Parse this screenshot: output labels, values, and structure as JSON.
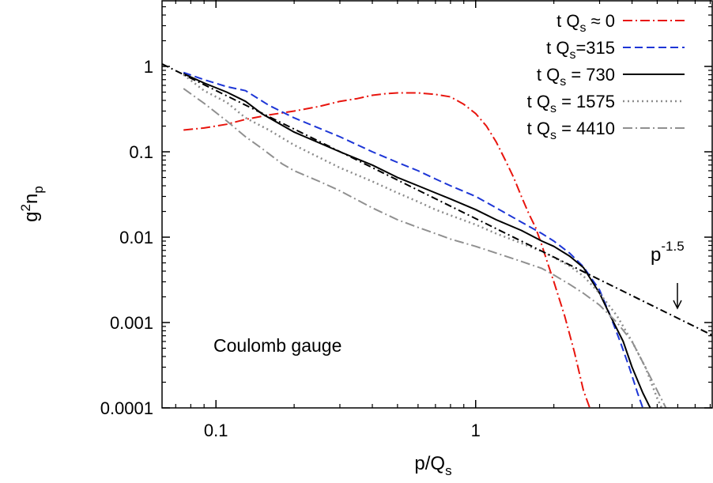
{
  "chart_data": {
    "type": "line",
    "xlabel": "p/Q",
    "xlabel_sub": "s",
    "ylabel": "g",
    "ylabel_sup": "2",
    "ylabel_tail": "n",
    "ylabel_sub": "p",
    "x_scale": "log",
    "y_scale": "log",
    "xlim": [
      0.062,
      8.2
    ],
    "ylim": [
      0.0001,
      6.0
    ],
    "xticks": [
      {
        "value": 0.1,
        "label": "0.1"
      },
      {
        "value": 1,
        "label": "1"
      }
    ],
    "yticks": [
      {
        "value": 0.0001,
        "label": "0.0001"
      },
      {
        "value": 0.001,
        "label": "0.001"
      },
      {
        "value": 0.01,
        "label": "0.01"
      },
      {
        "value": 0.1,
        "label": "0.1"
      },
      {
        "value": 1,
        "label": "1"
      }
    ],
    "grid": false,
    "legend_position": "top-right",
    "annotations": {
      "gauge": "Coulomb gauge",
      "powerlaw_base": "p",
      "powerlaw_exp": "-1.5"
    },
    "series": [
      {
        "legend_pre": "t Q",
        "legend_sub": "s",
        "legend_post": " ≈ 0",
        "color": "#e8150e",
        "dash": "12,4,2,4",
        "width": 2,
        "points": [
          [
            0.075,
            0.18
          ],
          [
            0.09,
            0.19
          ],
          [
            0.11,
            0.21
          ],
          [
            0.13,
            0.24
          ],
          [
            0.16,
            0.27
          ],
          [
            0.2,
            0.3
          ],
          [
            0.25,
            0.34
          ],
          [
            0.3,
            0.39
          ],
          [
            0.35,
            0.42
          ],
          [
            0.4,
            0.46
          ],
          [
            0.45,
            0.48
          ],
          [
            0.5,
            0.49
          ],
          [
            0.6,
            0.49
          ],
          [
            0.7,
            0.47
          ],
          [
            0.8,
            0.44
          ],
          [
            0.9,
            0.36
          ],
          [
            1.0,
            0.28
          ],
          [
            1.1,
            0.2
          ],
          [
            1.2,
            0.13
          ],
          [
            1.3,
            0.08
          ],
          [
            1.4,
            0.05
          ],
          [
            1.5,
            0.03
          ],
          [
            1.6,
            0.019
          ],
          [
            1.7,
            0.013
          ],
          [
            1.8,
            0.008
          ],
          [
            1.9,
            0.0048
          ],
          [
            2.0,
            0.003
          ],
          [
            2.2,
            0.0012
          ],
          [
            2.4,
            0.00045
          ],
          [
            2.6,
            0.00016
          ],
          [
            2.75,
            0.0001
          ]
        ]
      },
      {
        "legend_pre": "t Q",
        "legend_sub": "s",
        "legend_post": "=315",
        "color": "#1d36d6",
        "dash": "10,5",
        "width": 2,
        "points": [
          [
            0.075,
            0.85
          ],
          [
            0.09,
            0.7
          ],
          [
            0.11,
            0.58
          ],
          [
            0.13,
            0.52
          ],
          [
            0.16,
            0.35
          ],
          [
            0.2,
            0.25
          ],
          [
            0.3,
            0.15
          ],
          [
            0.4,
            0.1
          ],
          [
            0.5,
            0.075
          ],
          [
            0.6,
            0.06
          ],
          [
            0.7,
            0.048
          ],
          [
            0.8,
            0.04
          ],
          [
            1.0,
            0.03
          ],
          [
            1.2,
            0.022
          ],
          [
            1.5,
            0.015
          ],
          [
            1.8,
            0.011
          ],
          [
            2.0,
            0.009
          ],
          [
            2.3,
            0.0065
          ],
          [
            2.6,
            0.0045
          ],
          [
            3.0,
            0.0024
          ],
          [
            3.3,
            0.0012
          ],
          [
            3.6,
            0.0006
          ],
          [
            3.9,
            0.0003
          ],
          [
            4.2,
            0.00015
          ],
          [
            4.4,
            0.0001
          ]
        ]
      },
      {
        "legend_pre": "t Q",
        "legend_sub": "s",
        "legend_post": " = 730",
        "color": "#000000",
        "dash": "",
        "width": 2,
        "points": [
          [
            0.075,
            0.82
          ],
          [
            0.09,
            0.64
          ],
          [
            0.11,
            0.5
          ],
          [
            0.13,
            0.39
          ],
          [
            0.15,
            0.28
          ],
          [
            0.2,
            0.17
          ],
          [
            0.3,
            0.1
          ],
          [
            0.4,
            0.07
          ],
          [
            0.5,
            0.05
          ],
          [
            0.6,
            0.04
          ],
          [
            0.7,
            0.033
          ],
          [
            0.8,
            0.028
          ],
          [
            1.0,
            0.021
          ],
          [
            1.2,
            0.016
          ],
          [
            1.5,
            0.012
          ],
          [
            1.8,
            0.009
          ],
          [
            2.0,
            0.0078
          ],
          [
            2.3,
            0.006
          ],
          [
            2.6,
            0.0044
          ],
          [
            3.0,
            0.0022
          ],
          [
            3.3,
            0.0012
          ],
          [
            3.7,
            0.0006
          ],
          [
            4.0,
            0.0003
          ],
          [
            4.4,
            0.00015
          ],
          [
            4.7,
            0.0001
          ]
        ]
      },
      {
        "legend_pre": "t Q",
        "legend_sub": "s",
        "legend_post": " = 1575",
        "color": "#8c8c8c",
        "dash": "2,4",
        "width": 2.5,
        "points": [
          [
            0.075,
            0.8
          ],
          [
            0.09,
            0.52
          ],
          [
            0.11,
            0.38
          ],
          [
            0.13,
            0.25
          ],
          [
            0.16,
            0.18
          ],
          [
            0.2,
            0.12
          ],
          [
            0.3,
            0.065
          ],
          [
            0.4,
            0.045
          ],
          [
            0.5,
            0.033
          ],
          [
            0.6,
            0.026
          ],
          [
            0.7,
            0.021
          ],
          [
            0.8,
            0.018
          ],
          [
            1.0,
            0.014
          ],
          [
            1.2,
            0.011
          ],
          [
            1.5,
            0.0085
          ],
          [
            1.8,
            0.0068
          ],
          [
            2.0,
            0.0058
          ],
          [
            2.3,
            0.0046
          ],
          [
            2.6,
            0.0035
          ],
          [
            3.0,
            0.0022
          ],
          [
            3.5,
            0.0012
          ],
          [
            4.0,
            0.0006
          ],
          [
            4.5,
            0.0003
          ],
          [
            5.0,
            0.00013
          ],
          [
            5.2,
            0.0001
          ]
        ]
      },
      {
        "legend_pre": "t Q",
        "legend_sub": "s",
        "legend_post": " = 4410",
        "color": "#909090",
        "dash": "12,4,2,4",
        "width": 2,
        "points": [
          [
            0.075,
            0.55
          ],
          [
            0.09,
            0.37
          ],
          [
            0.11,
            0.23
          ],
          [
            0.13,
            0.15
          ],
          [
            0.15,
            0.11
          ],
          [
            0.18,
            0.072
          ],
          [
            0.2,
            0.06
          ],
          [
            0.25,
            0.045
          ],
          [
            0.3,
            0.035
          ],
          [
            0.4,
            0.022
          ],
          [
            0.5,
            0.016
          ],
          [
            0.6,
            0.013
          ],
          [
            0.7,
            0.011
          ],
          [
            0.8,
            0.0095
          ],
          [
            1.0,
            0.0078
          ],
          [
            1.2,
            0.0065
          ],
          [
            1.5,
            0.0052
          ],
          [
            1.8,
            0.0043
          ],
          [
            2.0,
            0.0036
          ],
          [
            2.3,
            0.0028
          ],
          [
            2.6,
            0.0022
          ],
          [
            3.0,
            0.0016
          ],
          [
            3.5,
            0.001
          ],
          [
            4.0,
            0.0006
          ],
          [
            4.5,
            0.0003
          ],
          [
            5.0,
            0.00016
          ],
          [
            5.4,
            0.0001
          ]
        ]
      },
      {
        "legend_pre": "",
        "legend_sub": "",
        "legend_post": "",
        "color": "#000000",
        "dash": "9,4,2,4",
        "width": 2,
        "points": [
          [
            0.062,
            1.07
          ],
          [
            8.2,
            0.000703
          ]
        ]
      }
    ]
  }
}
